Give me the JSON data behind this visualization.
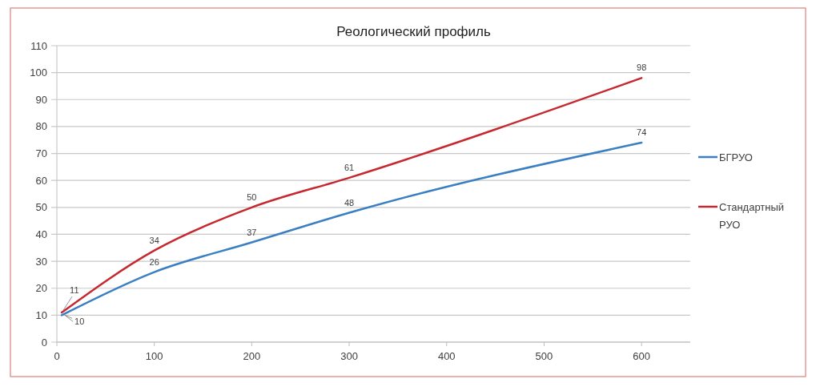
{
  "chart_data": {
    "type": "line",
    "title": "Реологический профиль",
    "x": [
      5,
      100,
      200,
      300,
      600
    ],
    "series": [
      {
        "name": "БГРУО",
        "color": "#3a7fc1",
        "values": [
          10,
          26,
          37,
          48,
          74
        ]
      },
      {
        "name": "Стандартный РУО",
        "color": "#c5282f",
        "values": [
          11,
          34,
          50,
          61,
          98
        ]
      }
    ],
    "xlim": [
      0,
      650
    ],
    "xticks": [
      0,
      100,
      200,
      300,
      400,
      500,
      600
    ],
    "ylim": [
      0,
      110
    ],
    "yticks": [
      0,
      10,
      20,
      30,
      40,
      50,
      60,
      70,
      80,
      90,
      100,
      110
    ],
    "grid": "y",
    "legend": "right",
    "data_labels": true,
    "marker": "none",
    "line_style": "solid"
  }
}
